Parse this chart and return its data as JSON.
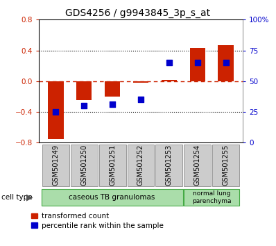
{
  "title": "GDS4256 / g9943845_3p_s_at",
  "samples": [
    "GSM501249",
    "GSM501250",
    "GSM501251",
    "GSM501252",
    "GSM501253",
    "GSM501254",
    "GSM501255"
  ],
  "red_values": [
    -0.75,
    -0.25,
    -0.2,
    -0.02,
    0.02,
    0.43,
    0.47
  ],
  "blue_values_pct": [
    25,
    30,
    31,
    35,
    65,
    65,
    65
  ],
  "ylim_left": [
    -0.8,
    0.8
  ],
  "ylim_right": [
    0,
    100
  ],
  "yticks_left": [
    -0.8,
    -0.4,
    0.0,
    0.4,
    0.8
  ],
  "yticks_right": [
    0,
    25,
    50,
    75,
    100
  ],
  "bar_color": "#cc2200",
  "dot_color": "#0000cc",
  "hline_color_red": "#cc2200",
  "dotted_line_color": "#000000",
  "green_light": "#aaddaa",
  "green_dark": "#44aa44",
  "gray_box": "#cccccc",
  "gray_edge": "#999999",
  "title_fontsize": 10,
  "tick_fontsize": 7.5,
  "label_fontsize": 7,
  "legend_fontsize": 7.5,
  "bar_width": 0.55,
  "group1_count": 5,
  "group2_count": 2,
  "group1_label": "caseous TB granulomas",
  "group2_label": "normal lung\nparenchyma",
  "cell_type_label": "cell type",
  "legend_labels": [
    "transformed count",
    "percentile rank within the sample"
  ]
}
